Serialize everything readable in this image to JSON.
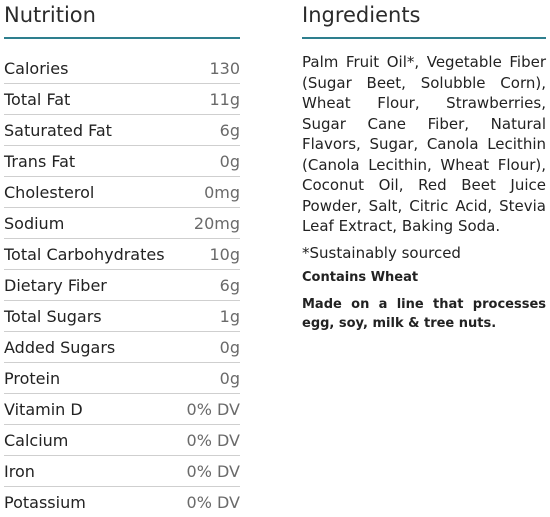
{
  "nutrition": {
    "heading": "Nutrition",
    "rows": [
      {
        "name": "Calories",
        "value": "130"
      },
      {
        "name": "Total Fat",
        "value": "11g"
      },
      {
        "name": "Saturated Fat",
        "value": "6g"
      },
      {
        "name": "Trans Fat",
        "value": "0g"
      },
      {
        "name": "Cholesterol",
        "value": "0mg"
      },
      {
        "name": "Sodium",
        "value": "20mg"
      },
      {
        "name": "Total Carbohydrates",
        "value": "10g"
      },
      {
        "name": "Dietary Fiber",
        "value": "6g"
      },
      {
        "name": "Total Sugars",
        "value": "1g"
      },
      {
        "name": "Added Sugars",
        "value": "0g"
      },
      {
        "name": "Protein",
        "value": "0g"
      },
      {
        "name": "Vitamin D",
        "value": "0% DV"
      },
      {
        "name": "Calcium",
        "value": "0% DV"
      },
      {
        "name": "Iron",
        "value": "0% DV"
      },
      {
        "name": "Potassium",
        "value": "0% DV"
      }
    ]
  },
  "ingredients": {
    "heading": "Ingredients",
    "list": "Palm Fruit Oil*, Vegetable Fiber (Sugar Beet, Solubble Corn), Wheat Flour, Strawberries, Sugar Cane Fiber, Natural Flavors, Sugar, Canola Lecithin (Canola Lecithin, Wheat Flour), Coconut Oil, Red Beet Juice Powder, Salt, Citric Acid, Stevia Leaf Extract, Baking Soda.",
    "note": "*Sustainably sourced",
    "allergen": "Contains Wheat",
    "facility": "Made on a line that processes egg, soy, milk & tree nuts."
  },
  "colors": {
    "accent_rule": "#2e7f8e"
  }
}
